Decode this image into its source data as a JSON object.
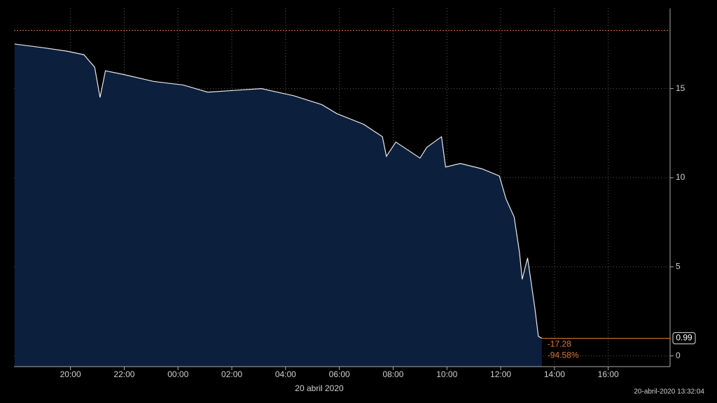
{
  "chart_data": {
    "type": "area",
    "x": [
      17.92,
      18.96,
      19.87,
      20.5,
      20.9,
      21.1,
      21.3,
      21.95,
      23.1,
      24.2,
      25.1,
      26.1,
      27.1,
      28.3,
      29.35,
      29.9,
      30.9,
      31.6,
      31.75,
      32.1,
      33.0,
      33.25,
      33.8,
      33.95,
      34.5,
      35.3,
      35.95,
      36.2,
      36.5,
      36.7,
      36.8,
      37.0,
      37.27,
      37.4,
      37.53
    ],
    "values": [
      17.5,
      17.3,
      17.1,
      16.9,
      16.2,
      14.5,
      16.0,
      15.8,
      15.4,
      15.2,
      14.8,
      14.9,
      15.0,
      14.6,
      14.1,
      13.6,
      13.0,
      12.3,
      11.2,
      12.0,
      11.1,
      11.7,
      12.3,
      10.6,
      10.8,
      10.5,
      10.1,
      8.8,
      7.8,
      5.8,
      4.3,
      5.5,
      2.7,
      1.1,
      0.99
    ],
    "color": "#0c1f3d",
    "line_color": "#e8e8e8",
    "xlim": [
      17.9,
      42.3
    ],
    "xticks": [
      {
        "value": 20,
        "label": "20:00"
      },
      {
        "value": 22,
        "label": "22:00"
      },
      {
        "value": 24,
        "label": "00:00"
      },
      {
        "value": 26,
        "label": "02:00"
      },
      {
        "value": 28,
        "label": "04:00"
      },
      {
        "value": 30,
        "label": "06:00"
      },
      {
        "value": 32,
        "label": "08:00"
      },
      {
        "value": 34,
        "label": "10:00"
      },
      {
        "value": 36,
        "label": "12:00"
      },
      {
        "value": 38,
        "label": "14:00"
      },
      {
        "value": 40,
        "label": "16:00"
      }
    ],
    "ylim": [
      -0.6,
      19.5
    ],
    "yticks": [
      0,
      5,
      10,
      15
    ],
    "grid": true,
    "reference_line": 18.27,
    "reference_color": "#e0762a",
    "last_value": 0.99,
    "change": -17.28,
    "change_pct": {
      "value": -94.58,
      "label": "-94.58%"
    },
    "date_label": "20 abril 2020",
    "timestamp": "20-abril-2020 13:32:04"
  }
}
